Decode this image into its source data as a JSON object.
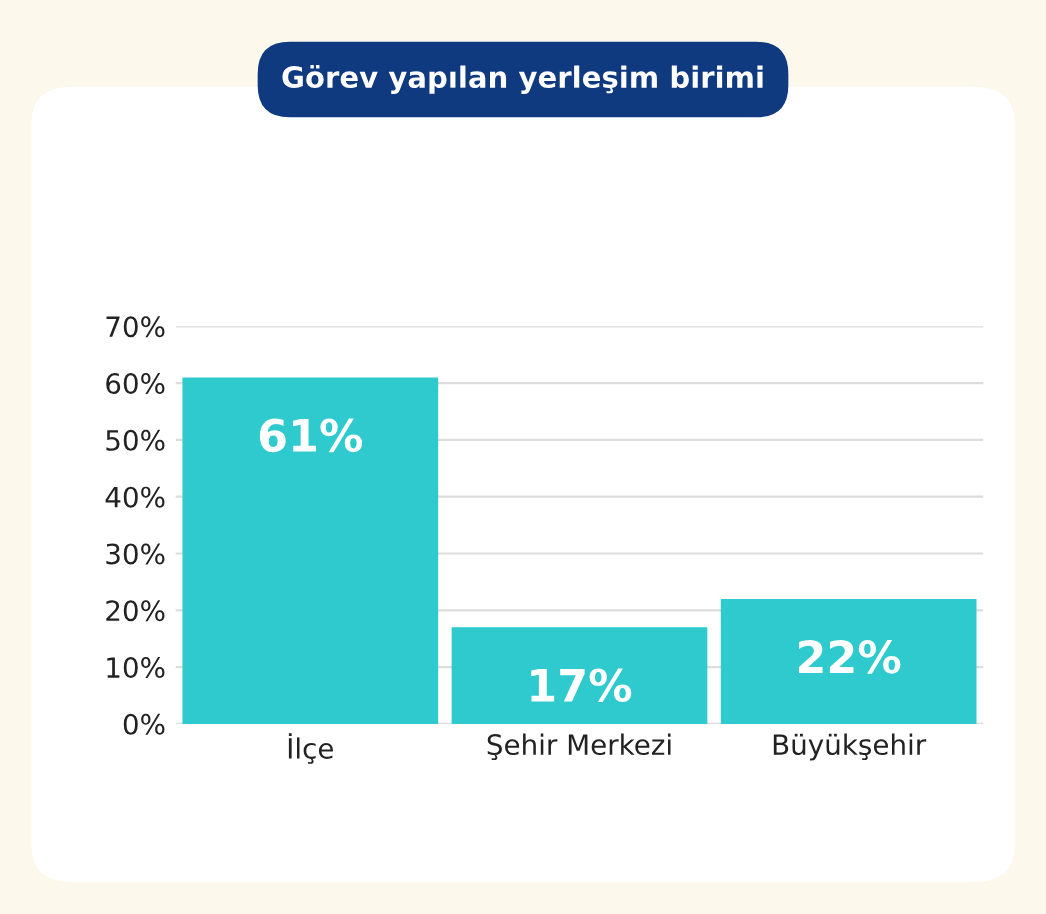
{
  "chart_data": {
    "type": "bar",
    "title": "Görev yapılan yerleşim birimi",
    "categories": [
      "İlçe",
      "Şehir Merkezi",
      "Büyükşehir"
    ],
    "values": [
      61,
      17,
      22
    ],
    "color": "#2ecacd",
    "value_labels": [
      "61%",
      "17%",
      "22%"
    ],
    "ylim": [
      0,
      70
    ],
    "yticks": [
      {
        "value": 0,
        "label": "0%"
      },
      {
        "value": 10,
        "label": "10%"
      },
      {
        "value": 20,
        "label": "20%"
      },
      {
        "value": 30,
        "label": "30%"
      },
      {
        "value": 40,
        "label": "40%"
      },
      {
        "value": 50,
        "label": "50%"
      },
      {
        "value": 60,
        "label": "60%"
      },
      {
        "value": 70,
        "label": "70%"
      }
    ],
    "grid": "y"
  }
}
